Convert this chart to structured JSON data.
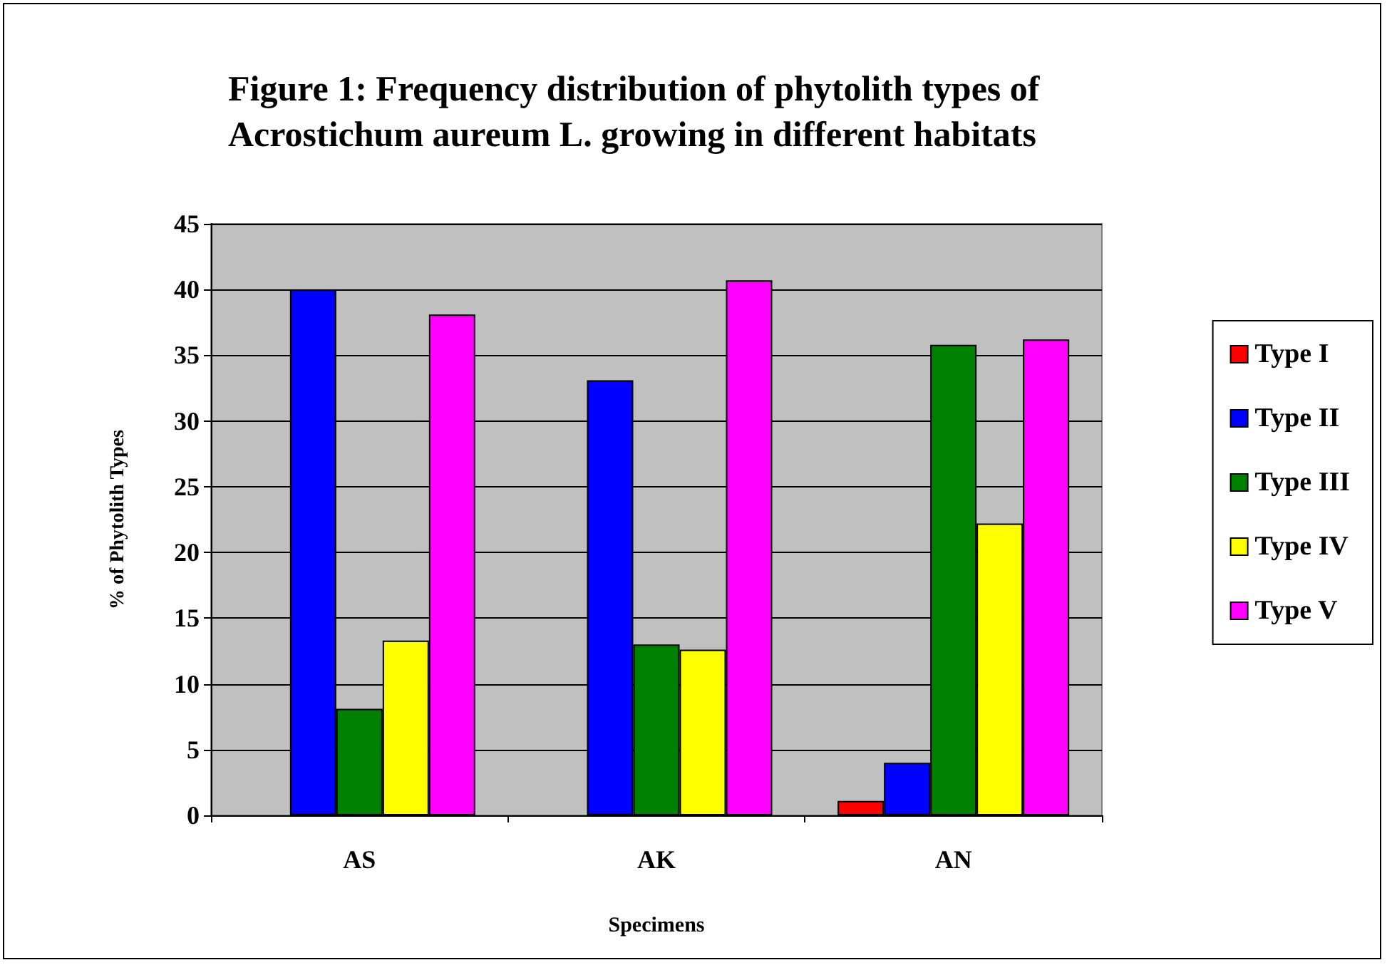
{
  "chart_data": {
    "type": "bar",
    "title": "Figure 1: Frequency distribution of phytolith types of\nAcrostichum aureum L. growing in different habitats",
    "xlabel": "Specimens",
    "ylabel": "% of Phytolith Types",
    "categories": [
      "AS",
      "AK",
      "AN"
    ],
    "series": [
      {
        "name": "Type I",
        "color": "#ff0000",
        "values": [
          null,
          null,
          1.1
        ]
      },
      {
        "name": "Type II",
        "color": "#0000ff",
        "values": [
          40.0,
          33.1,
          4.0
        ]
      },
      {
        "name": "Type III",
        "color": "#008000",
        "values": [
          8.1,
          13.0,
          35.8
        ]
      },
      {
        "name": "Type IV",
        "color": "#ffff00",
        "values": [
          13.3,
          12.6,
          22.2
        ]
      },
      {
        "name": "Type V",
        "color": "#ff00ff",
        "values": [
          38.1,
          40.7,
          36.2
        ]
      }
    ],
    "ylim": [
      0,
      45
    ],
    "yticks": [
      0,
      5,
      10,
      15,
      20,
      25,
      30,
      35,
      40,
      45
    ],
    "grid": "y",
    "legend": "right"
  }
}
